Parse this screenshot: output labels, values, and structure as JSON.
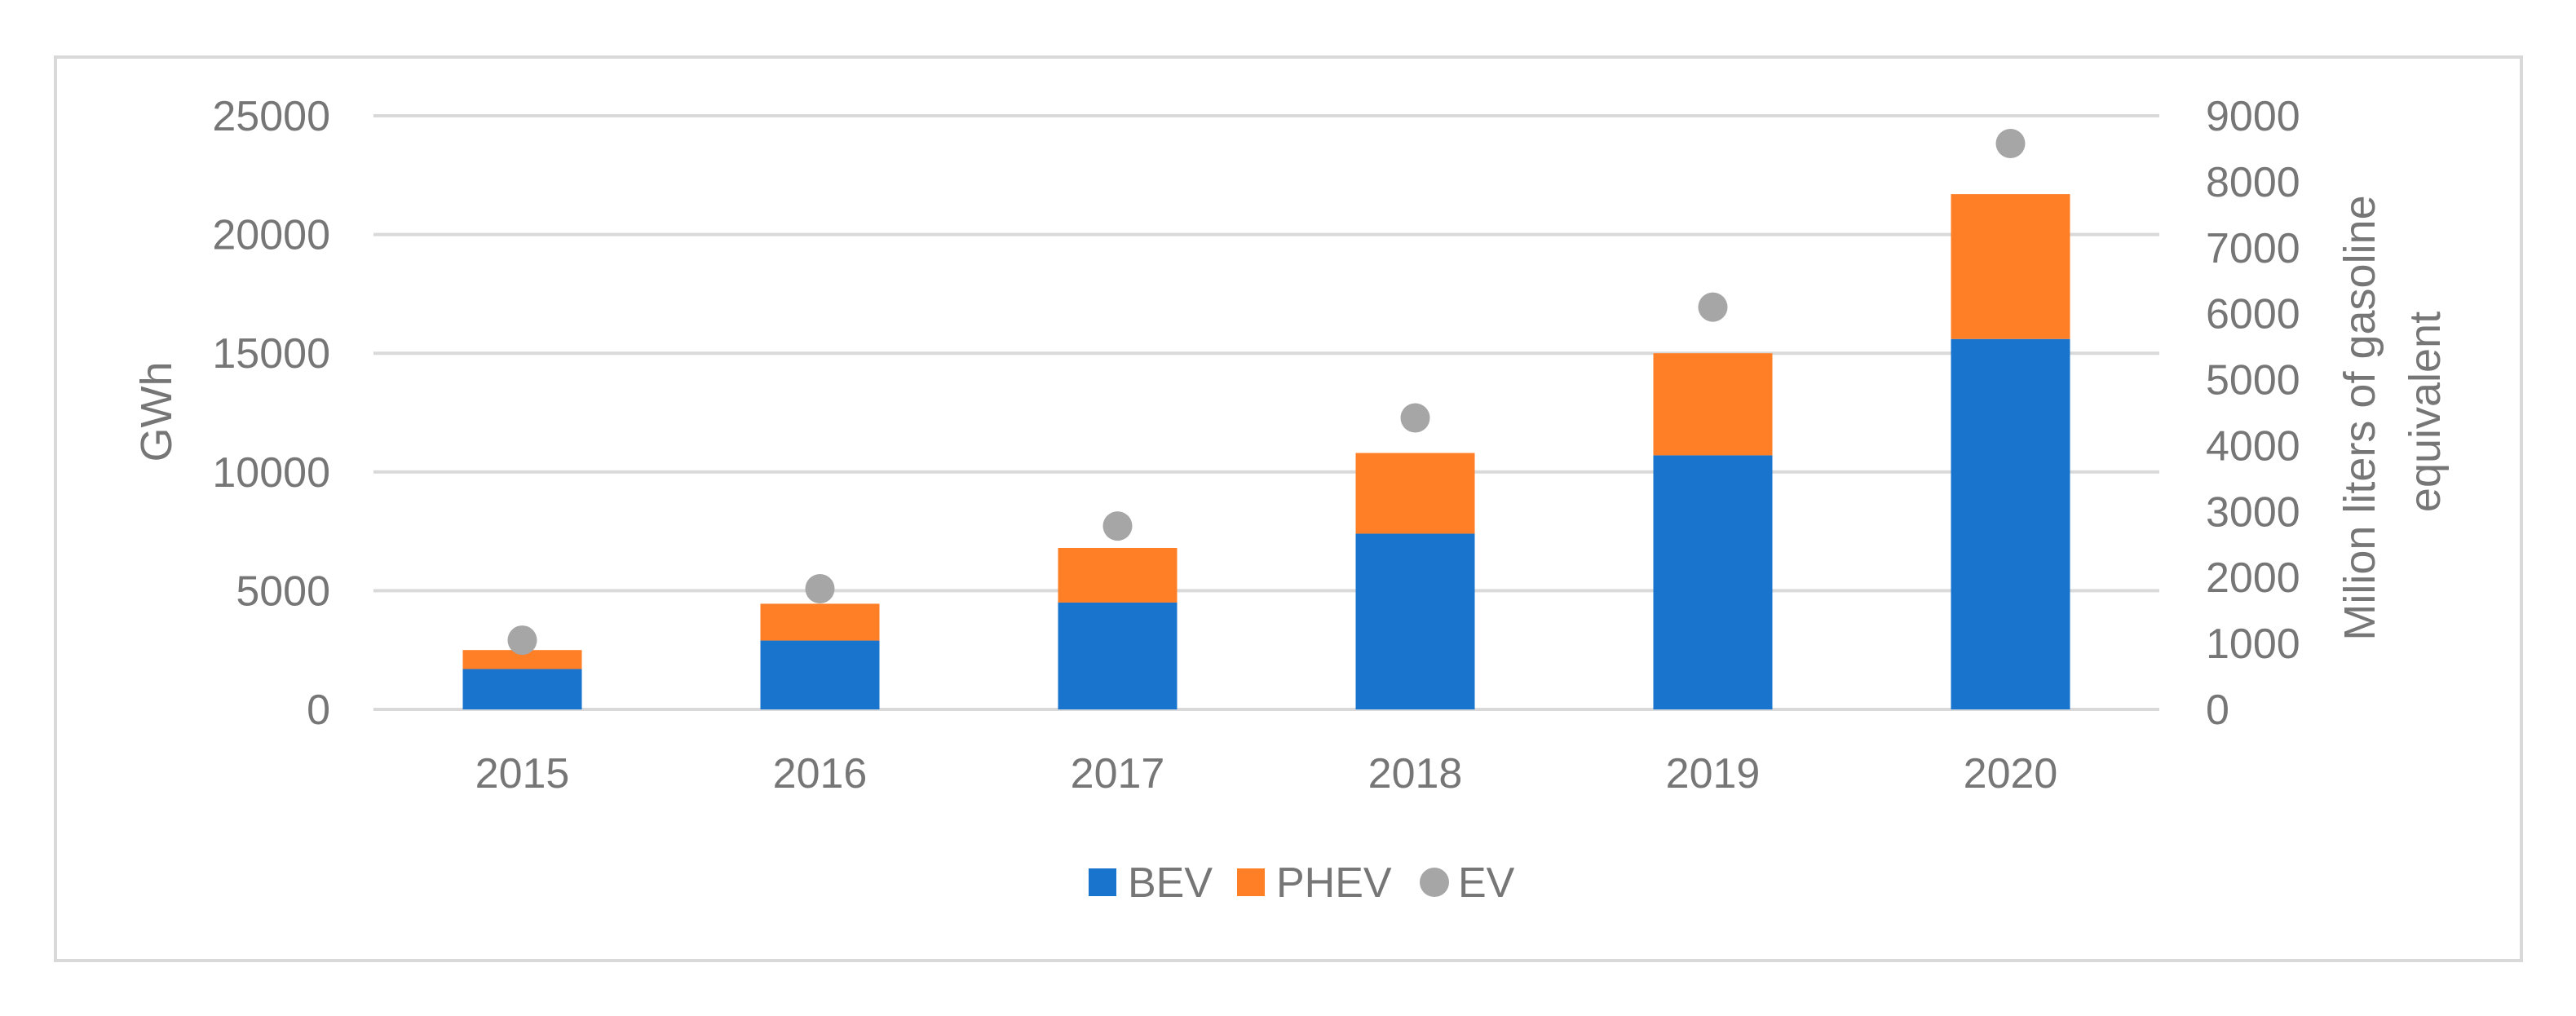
{
  "chart_data": {
    "type": "bar",
    "stacked": true,
    "categories": [
      "2015",
      "2016",
      "2017",
      "2018",
      "2019",
      "2020"
    ],
    "series": [
      {
        "name": "BEV",
        "axis": "left",
        "color": "#1874CD",
        "values": [
          1700,
          2900,
          4500,
          7400,
          10700,
          15600
        ]
      },
      {
        "name": "PHEV",
        "axis": "left",
        "color": "#FF7F27",
        "values": [
          800,
          1550,
          2300,
          3400,
          4300,
          6100
        ]
      },
      {
        "name": "EV",
        "axis": "right",
        "type": "scatter",
        "color": "#A6A6A6",
        "values": [
          1050,
          1830,
          2780,
          4420,
          6100,
          8580
        ]
      }
    ],
    "ylabel": "GWh",
    "ylim": [
      0,
      25000
    ],
    "yticks": [
      "0",
      "5000",
      "10000",
      "15000",
      "20000",
      "25000"
    ],
    "y2label_lines": [
      "Milion liters of gasoline",
      "equivalent"
    ],
    "y2lim": [
      0,
      9000
    ],
    "y2ticks": [
      "0",
      "1000",
      "2000",
      "3000",
      "4000",
      "5000",
      "6000",
      "7000",
      "8000",
      "9000"
    ],
    "grid": true,
    "legend_position": "bottom"
  }
}
